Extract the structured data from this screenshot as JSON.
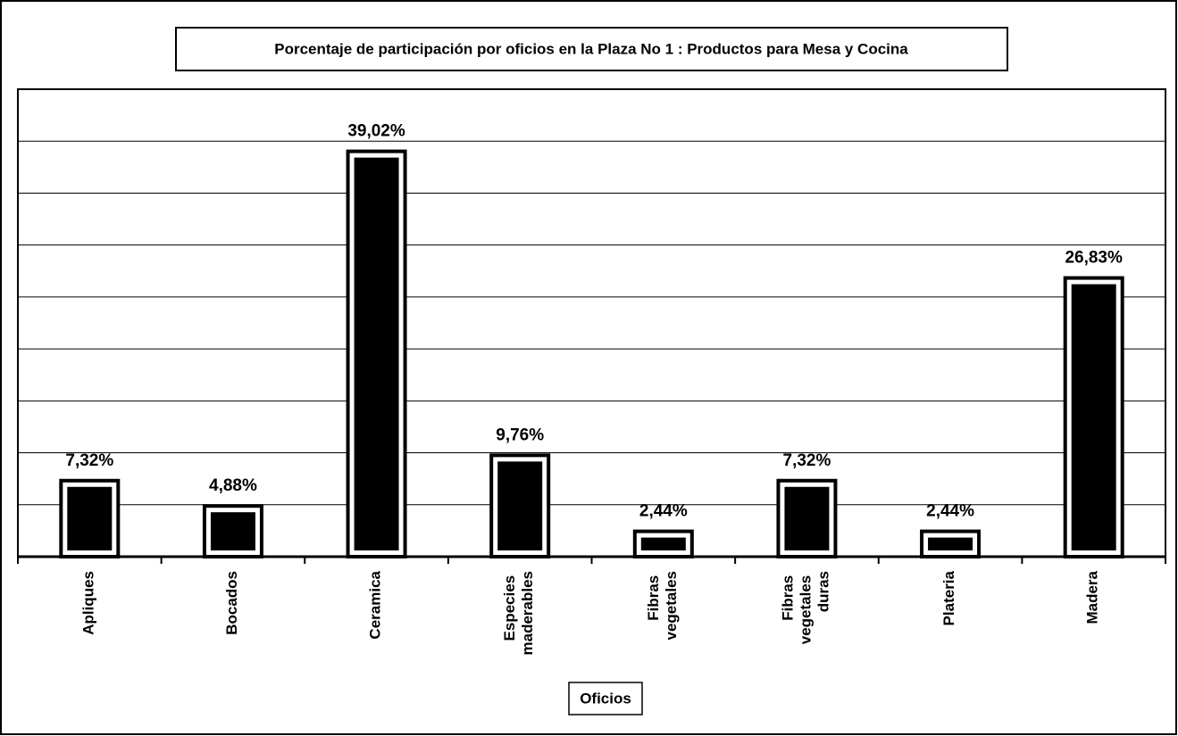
{
  "chart_data": {
    "type": "bar",
    "title": "Porcentaje de participación por oficios en la Plaza No 1 : Productos para Mesa y Cocina",
    "x_label": "Oficios",
    "categories": [
      "Apliques",
      "Bocados",
      "Ceramica",
      "Especies maderables",
      "Fibras vegetales",
      "Fibras vegetales duras",
      "Plateria",
      "Madera"
    ],
    "values": [
      7.32,
      4.88,
      39.02,
      9.76,
      2.44,
      7.32,
      2.44,
      26.83
    ],
    "value_labels": [
      "7,32%",
      "4,88%",
      "39,02%",
      "9,76%",
      "2,44%",
      "7,32%",
      "2,44%",
      "26,83%"
    ],
    "color": "#000000",
    "ylim": [
      0,
      45
    ],
    "yticks": [
      0,
      5,
      10,
      15,
      20,
      25,
      30,
      35,
      40,
      45
    ],
    "grid": true
  }
}
